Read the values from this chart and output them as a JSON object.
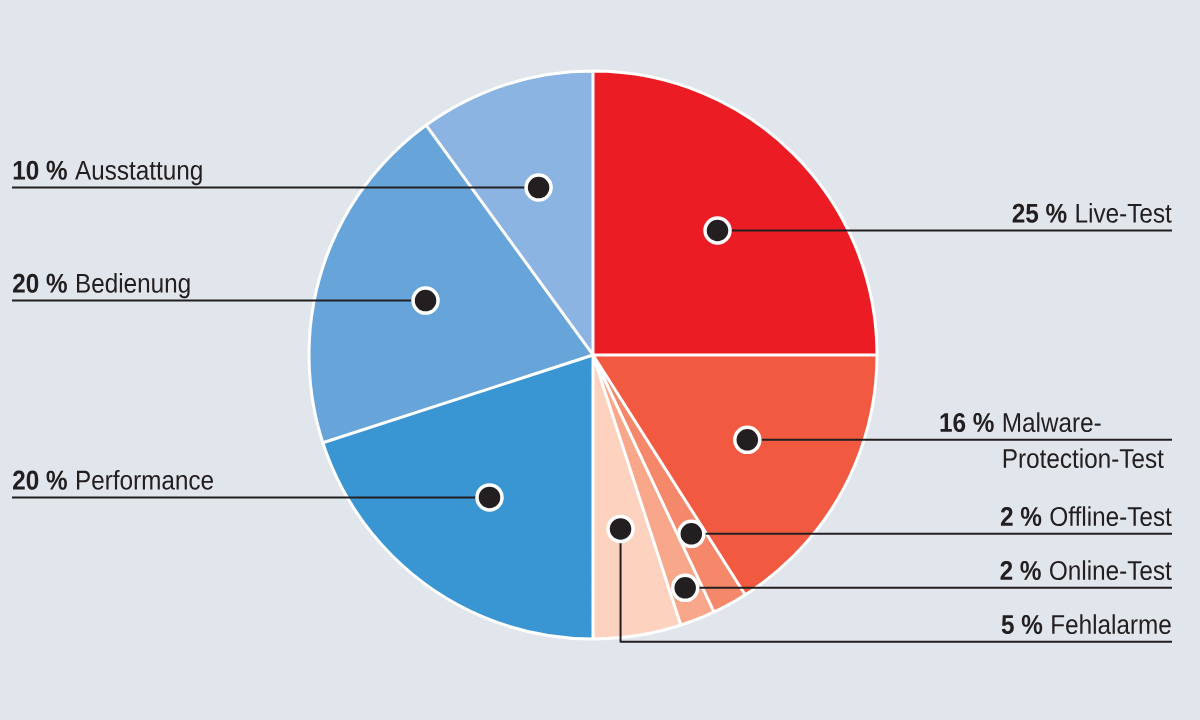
{
  "chart_data": {
    "type": "pie",
    "categories": [
      "Live-Test",
      "Malware-Protection-Test",
      "Offline-Test",
      "Online-Test",
      "Fehlalarme",
      "Performance",
      "Bedienung",
      "Ausstattung"
    ],
    "values": [
      25,
      16,
      2,
      2,
      5,
      20,
      20,
      10
    ],
    "value_labels": [
      "25 %",
      "16 %",
      "2 %",
      "2 %",
      "5 %",
      "20 %",
      "20 %",
      "10 %"
    ],
    "colors": [
      "#ec1c24",
      "#f15a40",
      "#f5876a",
      "#f8a78a",
      "#fdd2bf",
      "#3a95d3",
      "#66a4da",
      "#8cb4e2"
    ]
  }
}
